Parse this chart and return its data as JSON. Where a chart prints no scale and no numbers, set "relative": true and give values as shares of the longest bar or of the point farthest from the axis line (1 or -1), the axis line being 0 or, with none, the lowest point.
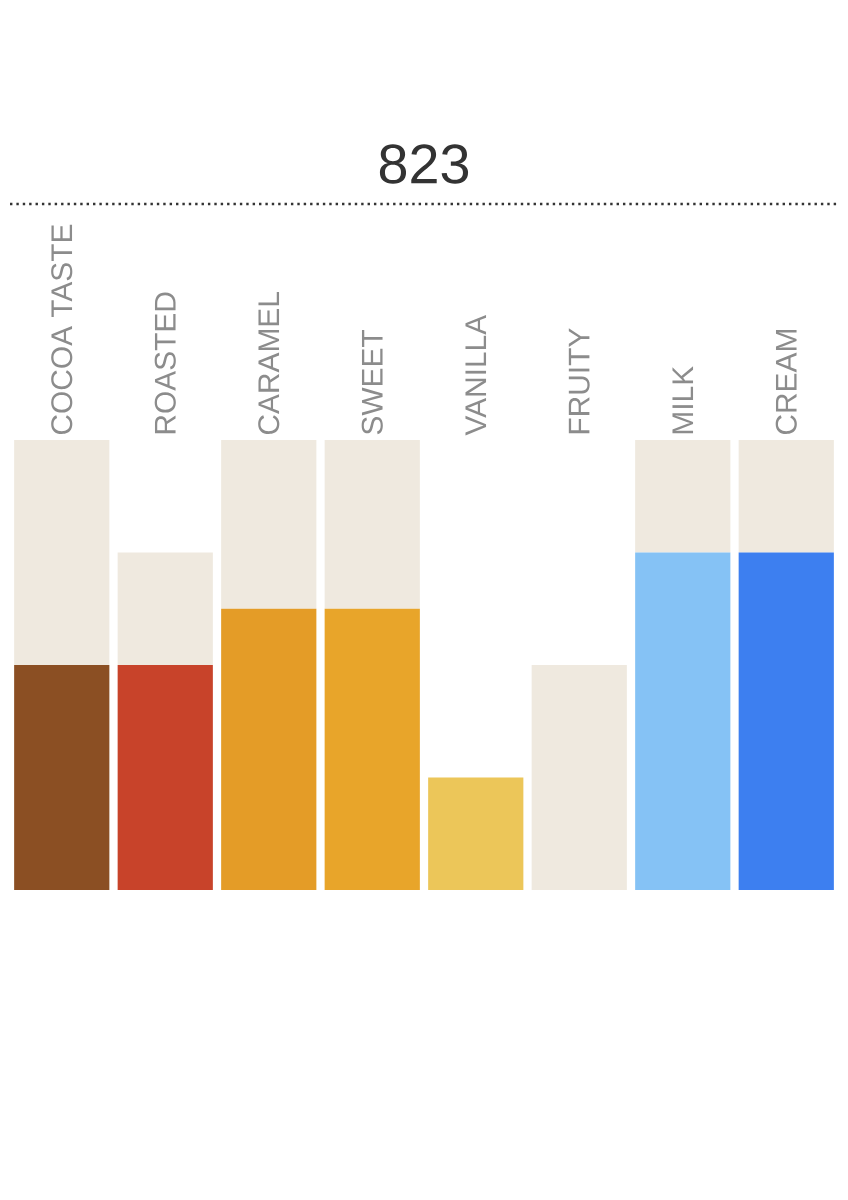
{
  "chart_data": {
    "type": "bar",
    "title": "823",
    "relative": true,
    "stacked": true,
    "categories": [
      "COCOA TASTE",
      "ROASTED",
      "CARAMEL",
      "SWEET",
      "VANILLA",
      "FRUITY",
      "MILK",
      "CREAM"
    ],
    "series": [
      {
        "colors": [
          "#8b4f23",
          "#c8432a",
          "#e49c27",
          "#e8a52a",
          "#ecc659",
          "#a5c23a",
          "#85c2f5",
          "#3d7ff0"
        ],
        "values": [
          0.5,
          0.5,
          0.625,
          0.625,
          0.25,
          0,
          0.75,
          0.75
        ]
      },
      {
        "color": "#efe9df",
        "values": [
          0.5,
          0.25,
          0.375,
          0.375,
          0,
          0.5,
          0.25,
          0.25
        ]
      }
    ]
  }
}
